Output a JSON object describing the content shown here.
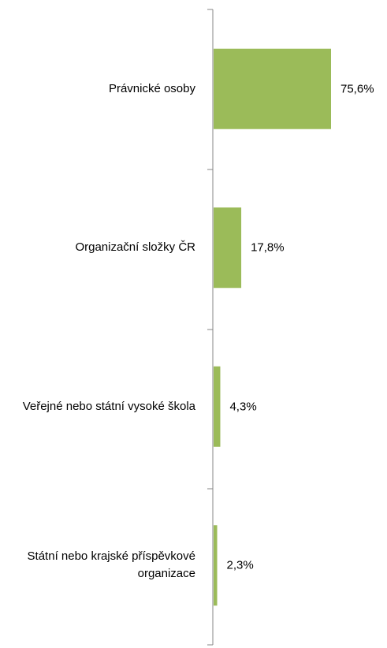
{
  "chart_data": {
    "type": "bar",
    "orientation": "horizontal",
    "categories": [
      "Právnické osoby",
      "Organizační složky ČR",
      "Veřejné nebo státní vysoké škola",
      "Státní nebo krajské příspěvkové organizace"
    ],
    "values": [
      75.6,
      17.8,
      4.3,
      2.3
    ],
    "value_labels": [
      "75,6%",
      "17,8%",
      "4,3%",
      "2,3%"
    ],
    "color": "#9bbb59"
  }
}
